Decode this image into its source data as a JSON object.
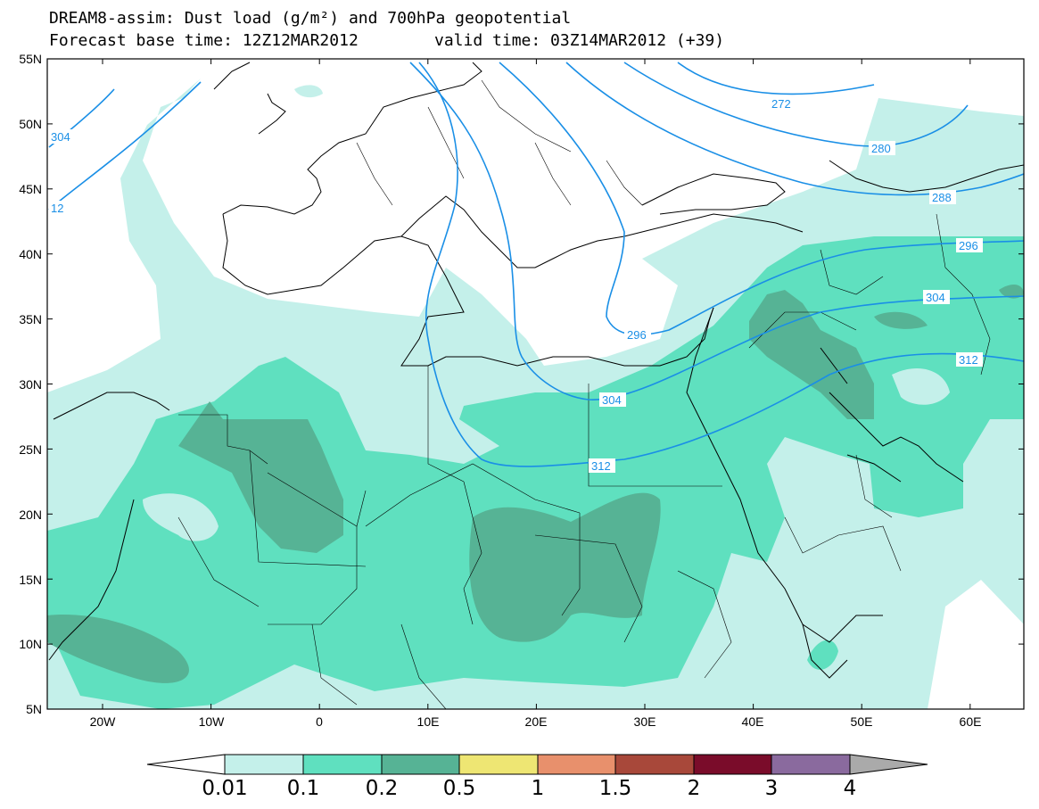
{
  "title": {
    "line1": "DREAM8-assim: Dust load (g/m²) and 700hPa geopotential",
    "base_time": "Forecast base time: 12Z12MAR2012",
    "valid_time": "valid time: 03Z14MAR2012 (+39)"
  },
  "axes": {
    "lat_labels": [
      "55N",
      "50N",
      "45N",
      "40N",
      "35N",
      "30N",
      "25N",
      "20N",
      "15N",
      "10N",
      "5N"
    ],
    "lon_labels": [
      "20W",
      "10W",
      "0",
      "10E",
      "20E",
      "30E",
      "40E",
      "50E",
      "60E"
    ]
  },
  "contour_labels": [
    "304",
    "12",
    "272",
    "280",
    "288",
    "296",
    "304",
    "296",
    "312",
    "304",
    "312"
  ],
  "colorbar": {
    "labels": [
      "0.01",
      "0.1",
      "0.2",
      "0.5",
      "1",
      "1.5",
      "2",
      "3",
      "4"
    ],
    "colors": [
      "#c4f0ea",
      "#5fe0bf",
      "#56b395",
      "#eee673",
      "#e8906c",
      "#a8483a",
      "#7a0c2a",
      "#8a6a9e",
      "#aaaaaa"
    ]
  },
  "colors": {
    "contour": "#1a8fe6",
    "dust_low": "#c4f0ea",
    "dust_mid": "#5fe0bf",
    "dust_high": "#56b395"
  }
}
